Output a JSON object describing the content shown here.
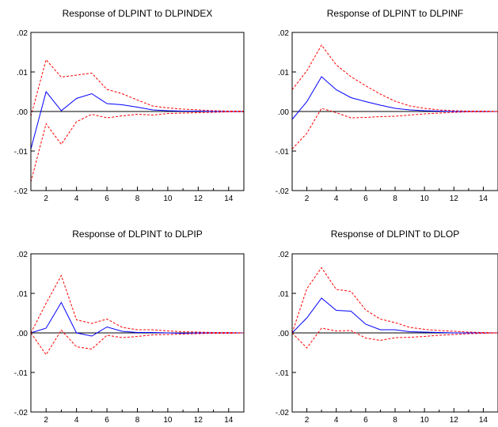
{
  "colors": {
    "response": "#0000ff",
    "bands": "#ff0000",
    "zero_line": "#000000",
    "frame": "#000000"
  },
  "chart_data": [
    {
      "type": "line",
      "title": "Response of DLPINT to DLPINDEX",
      "xlim": [
        1,
        15
      ],
      "ylim": [
        -0.02,
        0.02
      ],
      "xticks": [
        2,
        4,
        6,
        8,
        10,
        12,
        14
      ],
      "xtick_labels": [
        "2",
        "4",
        "6",
        "8",
        "10",
        "12",
        "14"
      ],
      "yticks": [
        -0.02,
        -0.01,
        0,
        0.01,
        0.02
      ],
      "ytick_labels": [
        "-.02",
        "-.01",
        ".00",
        ".01",
        ".02"
      ],
      "grid": false,
      "x": [
        1,
        2,
        3,
        4,
        5,
        6,
        7,
        8,
        9,
        10,
        11,
        12,
        13,
        14,
        15
      ],
      "series": [
        {
          "style": "solid",
          "values": [
            -0.0095,
            0.005,
            0.0002,
            0.0033,
            0.0045,
            0.002,
            0.0017,
            0.0011,
            0.0004,
            0.0002,
            0.0001,
            0.0001,
            0.0,
            0.0,
            0.0
          ]
        },
        {
          "style": "dashed",
          "values": [
            -0.0012,
            0.0131,
            0.0087,
            0.0092,
            0.0097,
            0.0056,
            0.0045,
            0.0029,
            0.0014,
            0.0009,
            0.0006,
            0.0004,
            0.0002,
            0.0001,
            0.0001
          ]
        },
        {
          "style": "dashed",
          "values": [
            -0.0178,
            -0.0031,
            -0.0083,
            -0.0026,
            -0.0007,
            -0.0016,
            -0.0011,
            -0.0007,
            -0.0009,
            -0.0005,
            -0.0004,
            -0.0003,
            -0.0002,
            -0.0001,
            -0.0001
          ]
        }
      ]
    },
    {
      "type": "line",
      "title": "Response of DLPINT to DLPINF",
      "xlim": [
        1,
        15
      ],
      "ylim": [
        -0.02,
        0.02
      ],
      "xticks": [
        2,
        4,
        6,
        8,
        10,
        12,
        14
      ],
      "xtick_labels": [
        "2",
        "4",
        "6",
        "8",
        "10",
        "12",
        "14"
      ],
      "yticks": [
        -0.02,
        -0.01,
        0,
        0.01,
        0.02
      ],
      "ytick_labels": [
        "-.02",
        "-.01",
        ".00",
        ".01",
        ".02"
      ],
      "grid": false,
      "x": [
        1,
        2,
        3,
        4,
        5,
        6,
        7,
        8,
        9,
        10,
        11,
        12,
        13,
        14,
        15
      ],
      "series": [
        {
          "style": "solid",
          "values": [
            -0.002,
            0.0025,
            0.0088,
            0.0055,
            0.0035,
            0.0025,
            0.0016,
            0.0008,
            0.0004,
            0.0002,
            0.0001,
            0.0,
            0.0,
            0.0,
            0.0
          ]
        },
        {
          "style": "dashed",
          "values": [
            0.0055,
            0.0103,
            0.0168,
            0.0118,
            0.0088,
            0.0065,
            0.0044,
            0.0026,
            0.0014,
            0.0008,
            0.0004,
            0.0002,
            0.0001,
            0.0001,
            0.0
          ]
        },
        {
          "style": "dashed",
          "values": [
            -0.0095,
            -0.0055,
            0.0008,
            -0.0003,
            -0.0016,
            -0.0015,
            -0.0013,
            -0.0012,
            -0.0009,
            -0.0006,
            -0.0004,
            -0.0002,
            -0.0001,
            -0.0001,
            0.0
          ]
        }
      ]
    },
    {
      "type": "line",
      "title": "Response of DLPINT to DLPIP",
      "xlim": [
        1,
        15
      ],
      "ylim": [
        -0.02,
        0.02
      ],
      "xticks": [
        2,
        4,
        6,
        8,
        10,
        12,
        14
      ],
      "xtick_labels": [
        "2",
        "4",
        "6",
        "8",
        "10",
        "12",
        "14"
      ],
      "yticks": [
        -0.02,
        -0.01,
        0,
        0.01,
        0.02
      ],
      "ytick_labels": [
        "-.02",
        "-.01",
        ".00",
        ".01",
        ".02"
      ],
      "grid": false,
      "x": [
        1,
        2,
        3,
        4,
        5,
        6,
        7,
        8,
        9,
        10,
        11,
        12,
        13,
        14,
        15
      ],
      "series": [
        {
          "style": "solid",
          "values": [
            0.0,
            0.0012,
            0.0077,
            0.0,
            -0.0008,
            0.0015,
            0.0004,
            0.0001,
            0.0001,
            0.0,
            -0.0001,
            0.0,
            0.0,
            0.0,
            0.0
          ]
        },
        {
          "style": "dashed",
          "values": [
            0.0,
            0.0075,
            0.0145,
            0.0033,
            0.0024,
            0.0035,
            0.0014,
            0.0008,
            0.0008,
            0.0005,
            0.0003,
            0.0002,
            0.0001,
            0.0001,
            0.0
          ]
        },
        {
          "style": "dashed",
          "values": [
            0.0,
            -0.0055,
            0.0007,
            -0.0035,
            -0.0041,
            -0.0006,
            -0.0012,
            -0.0009,
            -0.0005,
            -0.0004,
            -0.0003,
            -0.0002,
            -0.0001,
            -0.0001,
            0.0
          ]
        }
      ]
    },
    {
      "type": "line",
      "title": "Response of DLPINT to DLOP",
      "xlim": [
        1,
        15
      ],
      "ylim": [
        -0.02,
        0.02
      ],
      "xticks": [
        2,
        4,
        6,
        8,
        10,
        12,
        14
      ],
      "xtick_labels": [
        "2",
        "4",
        "6",
        "8",
        "10",
        "12",
        "14"
      ],
      "yticks": [
        -0.02,
        -0.01,
        0,
        0.01,
        0.02
      ],
      "ytick_labels": [
        "-.02",
        "-.01",
        ".00",
        ".01",
        ".02"
      ],
      "grid": false,
      "x": [
        1,
        2,
        3,
        4,
        5,
        6,
        7,
        8,
        9,
        10,
        11,
        12,
        13,
        14,
        15
      ],
      "series": [
        {
          "style": "solid",
          "values": [
            0.0,
            0.0038,
            0.0088,
            0.0057,
            0.0055,
            0.0022,
            0.0008,
            0.0008,
            0.0003,
            0.0002,
            0.0001,
            0.0,
            0.0,
            0.0,
            0.0
          ]
        },
        {
          "style": "dashed",
          "values": [
            0.0,
            0.0112,
            0.0165,
            0.011,
            0.0105,
            0.0058,
            0.0035,
            0.0026,
            0.0014,
            0.0009,
            0.0006,
            0.0004,
            0.0002,
            0.0001,
            0.0
          ]
        },
        {
          "style": "dashed",
          "values": [
            0.0,
            -0.0038,
            0.0012,
            0.0005,
            0.0006,
            -0.0013,
            -0.0019,
            -0.0012,
            -0.0011,
            -0.0009,
            -0.0006,
            -0.0004,
            -0.0002,
            -0.0001,
            0.0
          ]
        }
      ]
    }
  ]
}
